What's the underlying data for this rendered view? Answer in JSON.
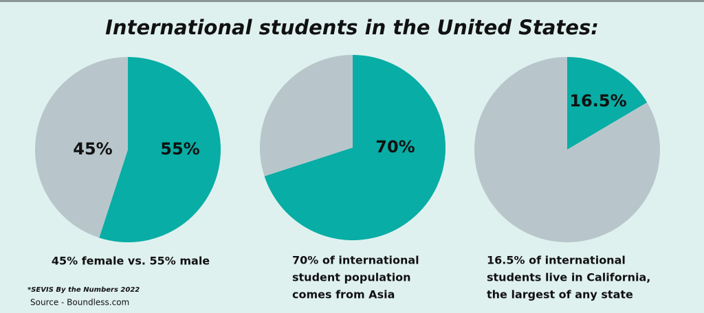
{
  "title": "International students in the United States:",
  "footnote": "*SEVIS By the Numbers 2022",
  "source": "Source - Boundless.com",
  "chart_data": [
    {
      "type": "pie",
      "values": [
        55,
        45
      ],
      "value_labels": [
        "55%",
        "45%"
      ],
      "colors": [
        "#08ada5",
        "#b8c6cb"
      ],
      "caption": [
        "45% female vs. 55% male"
      ]
    },
    {
      "type": "pie",
      "values": [
        70,
        30
      ],
      "value_labels": [
        "70%",
        null
      ],
      "colors": [
        "#08ada5",
        "#b8c6cb"
      ],
      "caption": [
        "70% of international",
        "student population",
        "comes from Asia"
      ]
    },
    {
      "type": "pie",
      "values": [
        16.5,
        83.5
      ],
      "value_labels": [
        "16.5%",
        null
      ],
      "colors": [
        "#08ada5",
        "#b8c6cb"
      ],
      "caption": [
        "16.5% of international",
        "students live in California,",
        "the largest of any state"
      ]
    }
  ]
}
